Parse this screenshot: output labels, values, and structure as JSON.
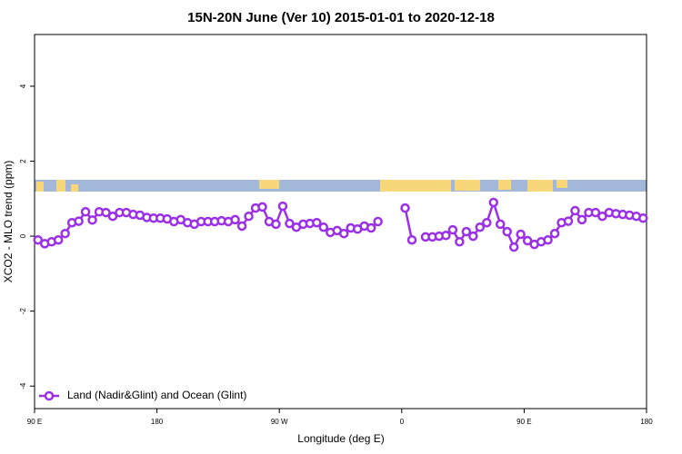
{
  "chart_data": {
    "type": "line",
    "title": "15N-20N June (Ver 10)   2015-01-01 to 2020-12-18",
    "x_label": "Longitude (deg E)",
    "y_label": "XCO2 - MLO trend (ppm)",
    "x": [
      92.5,
      97.5,
      102.5,
      107.5,
      112.5,
      117.5,
      122.5,
      127.5,
      132.5,
      137.5,
      142.5,
      147.5,
      152.5,
      157.5,
      162.5,
      167.5,
      172.5,
      177.5,
      182.5,
      187.5,
      192.5,
      197.5,
      202.5,
      207.5,
      212.5,
      217.5,
      222.5,
      227.5,
      232.5,
      237.5,
      242.5,
      247.5,
      252.5,
      257.5,
      262.5,
      267.5,
      272.5,
      277.5,
      282.5,
      287.5,
      292.5,
      297.5,
      302.5,
      307.5,
      312.5,
      317.5,
      322.5,
      327.5,
      332.5,
      337.5,
      342.5,
      347.5,
      352.5,
      357.5,
      362.5,
      367.5,
      372.5,
      377.5,
      382.5,
      387.5,
      392.5,
      397.5,
      402.5,
      407.5,
      412.5,
      417.5,
      422.5,
      427.5,
      432.5,
      437.5,
      442.5,
      447.5,
      452.5,
      457.5,
      462.5,
      467.5,
      472.5,
      477.5,
      482.5,
      487.5,
      492.5,
      497.5,
      502.5,
      507.5,
      512.5,
      517.5,
      522.5,
      527.5,
      532.5,
      537.5
    ],
    "series": [
      {
        "name": "Land (Nadir&Glint) and Ocean (Glint)",
        "color": "#9b30e6",
        "values": [
          -0.1,
          -0.2,
          -0.15,
          -0.1,
          0.07,
          0.36,
          0.4,
          0.65,
          0.43,
          0.65,
          0.63,
          0.53,
          0.63,
          0.63,
          0.58,
          0.56,
          0.5,
          0.48,
          0.48,
          0.46,
          0.39,
          0.44,
          0.36,
          0.32,
          0.39,
          0.39,
          0.39,
          0.41,
          0.39,
          0.44,
          0.27,
          0.53,
          0.75,
          0.78,
          0.39,
          0.32,
          0.8,
          0.34,
          0.24,
          0.32,
          0.34,
          0.36,
          0.24,
          0.1,
          0.15,
          0.07,
          0.22,
          0.19,
          0.27,
          0.22,
          0.39,
          null,
          null,
          null,
          0.75,
          -0.1,
          null,
          -0.02,
          -0.02,
          0,
          0.02,
          0.17,
          -0.15,
          0.12,
          0,
          0.24,
          0.36,
          0.9,
          0.32,
          0.12,
          -0.29,
          0.05,
          -0.12,
          -0.22,
          -0.15,
          -0.1,
          0.07,
          0.36,
          0.4,
          0.68,
          0.44,
          0.63,
          0.63,
          0.53,
          0.63,
          0.6,
          0.58,
          0.56,
          0.53,
          0.48
        ]
      }
    ],
    "xlim": [
      90,
      540
    ],
    "xticks": [
      {
        "value": 90,
        "label": "90 E"
      },
      180,
      {
        "value": 270,
        "label": "90 W"
      },
      {
        "value": 360,
        "label": "0"
      },
      {
        "value": 450,
        "label": "90 E"
      },
      {
        "value": 540,
        "label": "180"
      }
    ],
    "ylim": [
      -4.6,
      5.38
    ],
    "yticks": [
      -4,
      -2,
      0,
      2,
      4
    ],
    "legend": "bottom-left"
  }
}
